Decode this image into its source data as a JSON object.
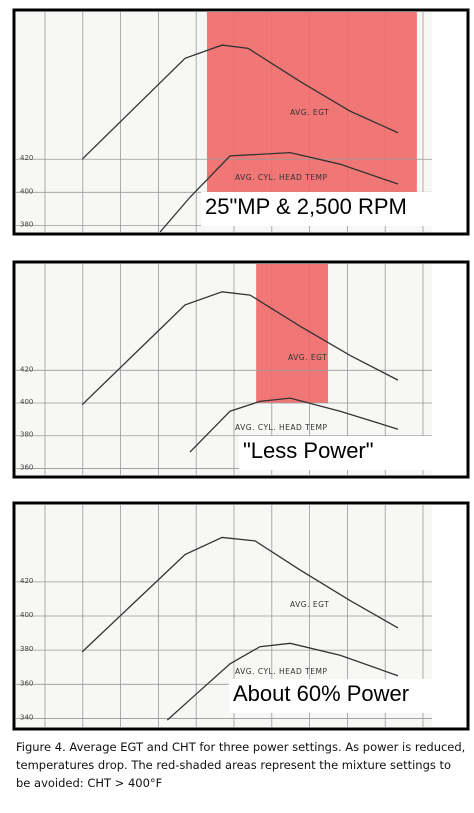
{
  "chart_data": [
    {
      "type": "line",
      "xlim": [
        0,
        11
      ],
      "ylim": [
        376,
        509
      ],
      "yticks": [
        380,
        400,
        420
      ],
      "series": [
        {
          "name": "AVG. EGT",
          "color": "#333333",
          "x": [
            1.75,
            4.47,
            5.45,
            6.14,
            7.51,
            8.84,
            10.1
          ],
          "values": [
            420,
            481,
            489,
            487,
            467,
            449,
            436
          ]
        },
        {
          "name": "AVG. CYL. HEAD TEMP",
          "color": "#333333",
          "x": [
            3.81,
            4.6,
            5.66,
            7.25,
            8.57,
            10.1
          ],
          "values": [
            376,
            397,
            422,
            424,
            417,
            405
          ]
        }
      ],
      "shaded_region": {
        "x": [
          5.05,
          10.6
        ],
        "y": [
          400,
          509
        ],
        "color": "#f06a6a"
      },
      "annotation": "25\"MP & 2,500 RPM"
    },
    {
      "type": "line",
      "xlim": [
        0,
        11
      ],
      "ylim": [
        356,
        485
      ],
      "yticks": [
        360,
        380,
        400,
        420
      ],
      "series": [
        {
          "name": "AVG. EGT",
          "color": "#333333",
          "x": [
            1.75,
            4.47,
            5.45,
            6.19,
            7.51,
            8.84,
            10.1
          ],
          "values": [
            399,
            460,
            468,
            466,
            447,
            429,
            414
          ]
        },
        {
          "name": "AVG. CYL. HEAD TEMP",
          "color": "#333333",
          "x": [
            4.6,
            5.66,
            6.45,
            7.25,
            8.57,
            10.1
          ],
          "values": [
            370,
            395,
            401,
            403,
            395,
            384
          ]
        }
      ],
      "shaded_region": {
        "x": [
          6.35,
          8.25
        ],
        "y": [
          400,
          485
        ],
        "color": "#f06a6a"
      },
      "annotation": "\"Less Power\""
    },
    {
      "type": "line",
      "xlim": [
        0,
        11
      ],
      "ylim": [
        335,
        465
      ],
      "yticks": [
        340,
        360,
        380,
        400,
        420
      ],
      "series": [
        {
          "name": "AVG. EGT",
          "color": "#333333",
          "x": [
            1.75,
            4.47,
            5.45,
            6.32,
            7.51,
            8.84,
            10.1
          ],
          "values": [
            379,
            436,
            446,
            444,
            427,
            409,
            393
          ]
        },
        {
          "name": "AVG. CYL. HEAD TEMP",
          "color": "#333333",
          "x": [
            4.0,
            4.6,
            5.66,
            6.45,
            7.25,
            8.57,
            10.1
          ],
          "values": [
            339,
            351,
            372,
            382,
            384,
            377,
            365
          ]
        }
      ],
      "annotation": "About 60% Power"
    }
  ],
  "caption": "Figure 4.  Average EGT and CHT for three power settings.  As power is reduced, temperatures drop.  The red-shaded areas represent the mixture settings to be avoided: CHT > 400°F"
}
